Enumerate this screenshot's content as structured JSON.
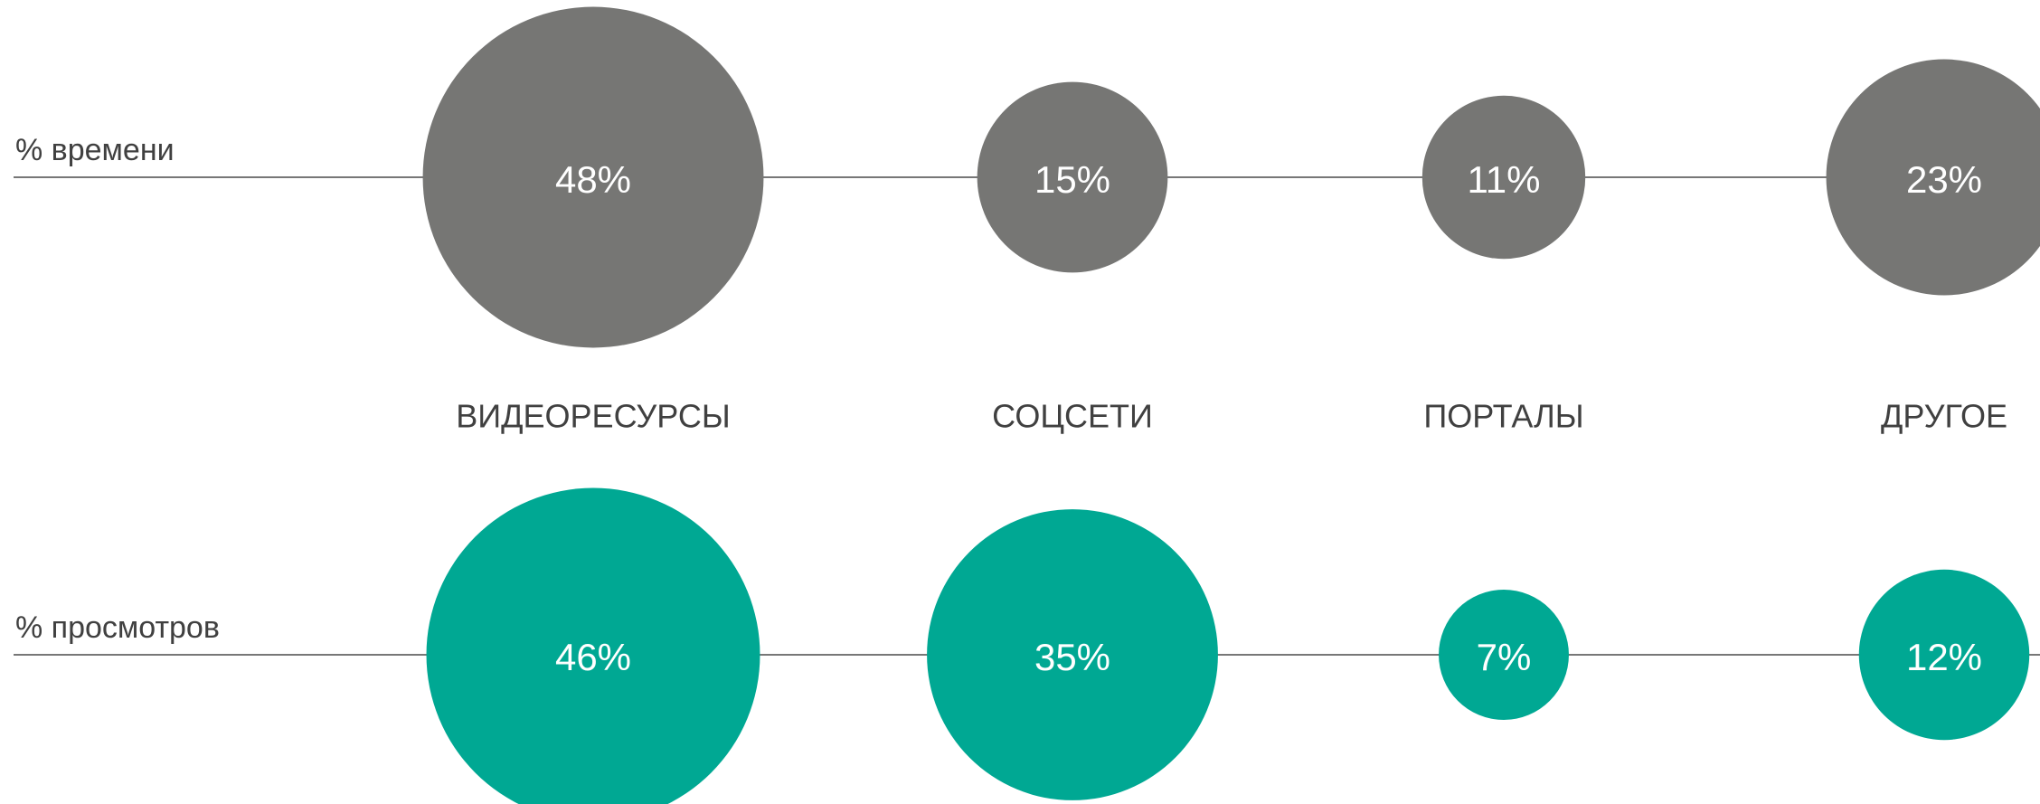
{
  "chart_data": {
    "type": "bubble",
    "categories": [
      "ВИДЕОРЕСУРСЫ",
      "СОЦСЕТИ",
      "ПОРТАЛЫ",
      "ДРУГОЕ"
    ],
    "series": [
      {
        "name": "% времени",
        "color": "#767674",
        "values": [
          48,
          15,
          11,
          23
        ],
        "value_labels": [
          "48%",
          "15%",
          "11%",
          "23%"
        ]
      },
      {
        "name": "% просмотров",
        "color": "#00a893",
        "values": [
          46,
          35,
          7,
          12
        ],
        "value_labels": [
          "46%",
          "35%",
          "7%",
          "12%"
        ]
      }
    ]
  }
}
